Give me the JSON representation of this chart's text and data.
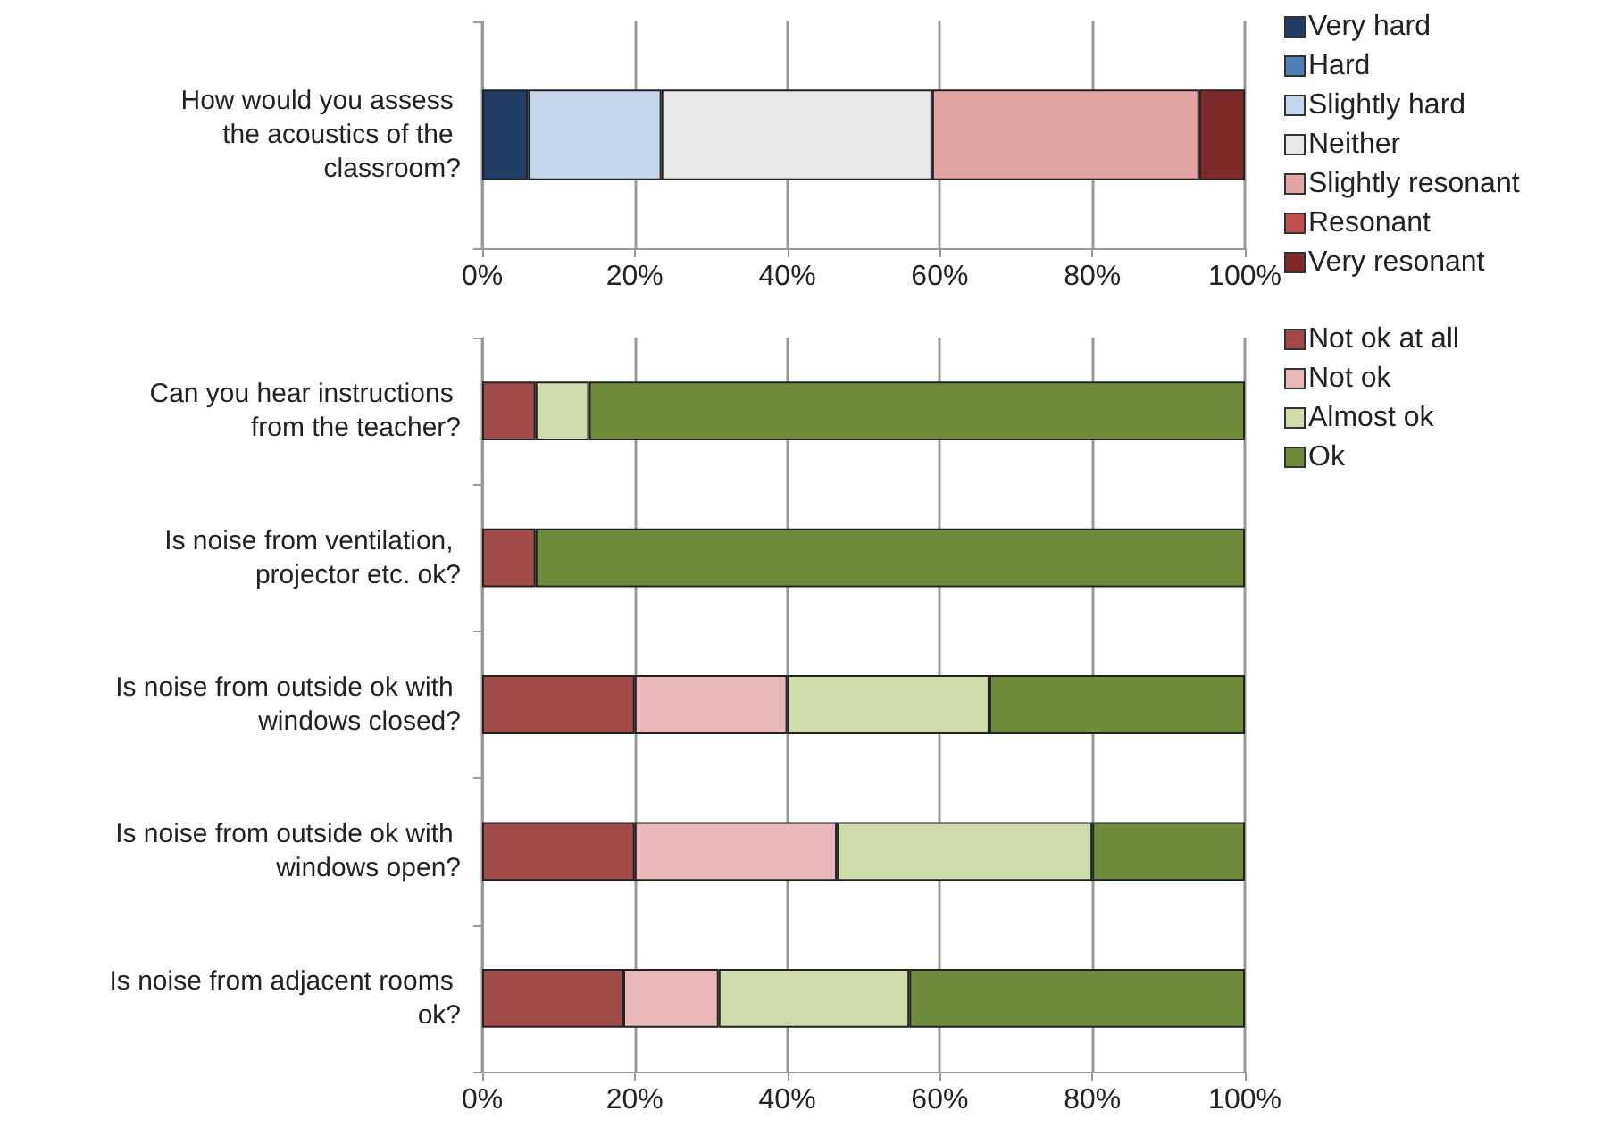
{
  "chart_data": [
    {
      "type": "bar",
      "orientation": "horizontal",
      "stacked": true,
      "categories": [
        "How would you assess the acoustics of the classroom?"
      ],
      "series": [
        {
          "name": "Very hard",
          "color": "#1f3d66",
          "values": [
            6
          ]
        },
        {
          "name": "Hard",
          "color": "#4f7fb5",
          "values": [
            0
          ]
        },
        {
          "name": "Slightly hard",
          "color": "#c6d6ea",
          "values": [
            17.5
          ]
        },
        {
          "name": "Neither",
          "color": "#e8e8e8",
          "values": [
            35.5
          ]
        },
        {
          "name": "Slightly resonant",
          "color": "#e3a4a4",
          "values": [
            35
          ]
        },
        {
          "name": "Resonant",
          "color": "#c0504d",
          "values": [
            0
          ]
        },
        {
          "name": "Very resonant",
          "color": "#7f2a2a",
          "values": [
            6
          ]
        }
      ],
      "xlim": [
        0,
        100
      ],
      "xticks": [
        {
          "value": 0,
          "label": "0%"
        },
        {
          "value": 20,
          "label": "20%"
        },
        {
          "value": 40,
          "label": "40%"
        },
        {
          "value": 60,
          "label": "60%"
        },
        {
          "value": 80,
          "label": "80%"
        },
        {
          "value": 100,
          "label": "100%"
        }
      ],
      "grid": "x",
      "legend": "right"
    },
    {
      "type": "bar",
      "orientation": "horizontal",
      "stacked": true,
      "categories": [
        "Can you hear instructions from the teacher?",
        "Is noise from ventilation, projector etc. ok?",
        "Is noise from outside ok with windows closed?",
        "Is noise from outside ok with windows open?",
        "Is noise from adjacent rooms ok?"
      ],
      "series": [
        {
          "name": "Not ok at all",
          "color": "#a04a4a",
          "values": [
            7,
            7,
            20,
            20,
            18.5
          ]
        },
        {
          "name": "Not ok",
          "color": "#eab8b8",
          "values": [
            0,
            0,
            20,
            26.5,
            12.5
          ]
        },
        {
          "name": "Almost ok",
          "color": "#cddca8",
          "values": [
            7,
            0,
            26.5,
            33.5,
            25
          ]
        },
        {
          "name": "Ok",
          "color": "#6f8c3c",
          "values": [
            86,
            93,
            33.5,
            20,
            44
          ]
        }
      ],
      "xlim": [
        0,
        100
      ],
      "xticks": [
        {
          "value": 0,
          "label": "0%"
        },
        {
          "value": 20,
          "label": "20%"
        },
        {
          "value": 40,
          "label": "40%"
        },
        {
          "value": 60,
          "label": "60%"
        },
        {
          "value": 80,
          "label": "80%"
        },
        {
          "value": 100,
          "label": "100%"
        }
      ],
      "grid": "x",
      "legend": "right"
    }
  ]
}
